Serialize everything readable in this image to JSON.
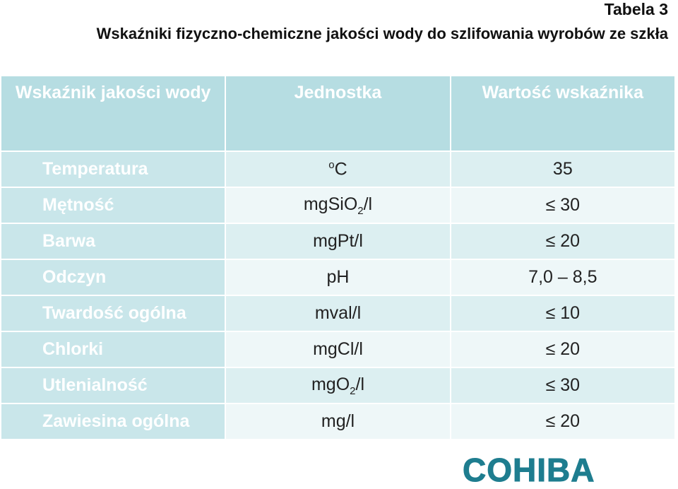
{
  "header": {
    "label": "Tabela 3",
    "title": "Wskaźniki fizyczno-chemiczne jakości wody do szlifowania wyrobów ze szkła"
  },
  "table": {
    "columns": [
      "Wskaźnik jakości wody",
      "Jednostka",
      "Wartość wskaźnika"
    ],
    "rows": [
      {
        "name": "Temperatura",
        "unit": [
          {
            "text": "o",
            "script": "sup"
          },
          {
            "text": "C"
          }
        ],
        "value": "35"
      },
      {
        "name": "Mętność",
        "unit": [
          {
            "text": "mgSiO"
          },
          {
            "text": "2",
            "script": "sub"
          },
          {
            "text": "/l"
          }
        ],
        "value": "≤ 30"
      },
      {
        "name": "Barwa",
        "unit": [
          {
            "text": "mgPt/l"
          }
        ],
        "value": "≤ 20"
      },
      {
        "name": "Odczyn",
        "unit": [
          {
            "text": "pH"
          }
        ],
        "value": "7,0 – 8,5"
      },
      {
        "name": "Twardość ogólna",
        "unit": [
          {
            "text": "mval/l"
          }
        ],
        "value": "≤ 10"
      },
      {
        "name": "Chlorki",
        "unit": [
          {
            "text": "mgCl/l"
          }
        ],
        "value": "≤ 20"
      },
      {
        "name": "Utlenialność",
        "unit": [
          {
            "text": "mgO"
          },
          {
            "text": "2",
            "script": "sub"
          },
          {
            "text": "/l"
          }
        ],
        "value": "≤ 30"
      },
      {
        "name": "Zawiesina ogólna",
        "unit": [
          {
            "text": "mg/l"
          }
        ],
        "value": "≤ 20"
      }
    ]
  },
  "logo": "COHIBA"
}
